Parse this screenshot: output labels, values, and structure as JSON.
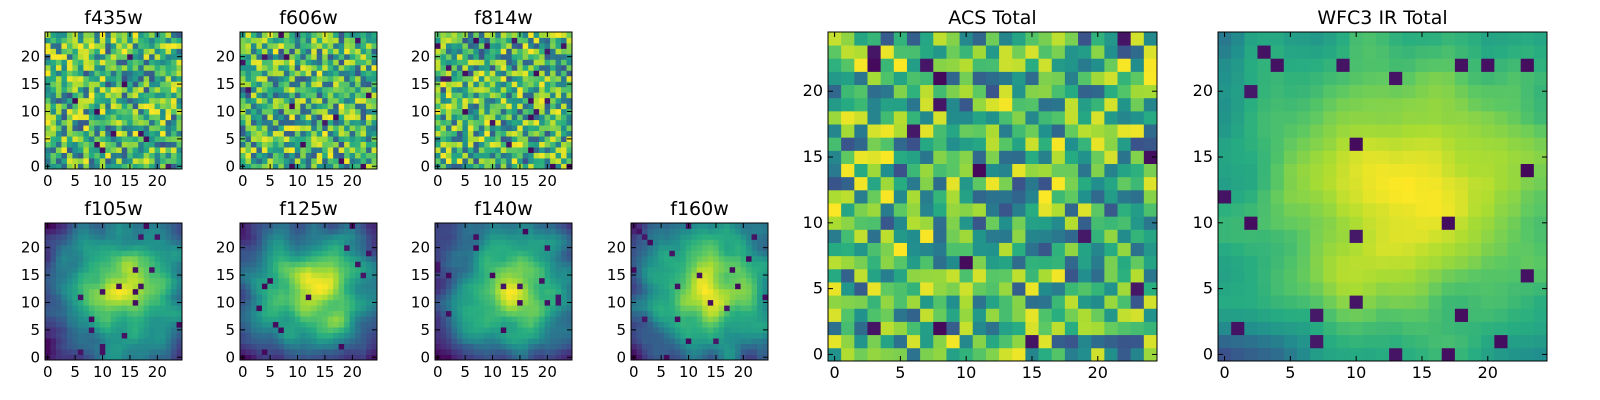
{
  "chart_data": [
    {
      "id": "f435w",
      "type": "heatmap",
      "title": "f435w",
      "grid_size": 25,
      "xlim": [
        -0.5,
        24.5
      ],
      "ylim": [
        -0.5,
        24.5
      ],
      "xticks": [
        0,
        5,
        10,
        15,
        20
      ],
      "yticks": [
        0,
        5,
        10,
        15,
        20
      ],
      "colormap": "viridis",
      "texture": "noise",
      "seed": 11
    },
    {
      "id": "f606w",
      "type": "heatmap",
      "title": "f606w",
      "grid_size": 25,
      "xlim": [
        -0.5,
        24.5
      ],
      "ylim": [
        -0.5,
        24.5
      ],
      "xticks": [
        0,
        5,
        10,
        15,
        20
      ],
      "yticks": [
        0,
        5,
        10,
        15,
        20
      ],
      "colormap": "viridis",
      "texture": "noise",
      "seed": 23
    },
    {
      "id": "f814w",
      "type": "heatmap",
      "title": "f814w",
      "grid_size": 25,
      "xlim": [
        -0.5,
        24.5
      ],
      "ylim": [
        -0.5,
        24.5
      ],
      "xticks": [
        0,
        5,
        10,
        15,
        20
      ],
      "yticks": [
        0,
        5,
        10,
        15,
        20
      ],
      "colormap": "viridis",
      "texture": "noise",
      "seed": 37
    },
    {
      "id": "f105w",
      "type": "heatmap",
      "title": "f105w",
      "grid_size": 25,
      "xlim": [
        -0.5,
        24.5
      ],
      "ylim": [
        -0.5,
        24.5
      ],
      "xticks": [
        0,
        5,
        10,
        15,
        20
      ],
      "yticks": [
        0,
        5,
        10,
        15,
        20
      ],
      "colormap": "viridis",
      "texture": "smooth",
      "seed": 41
    },
    {
      "id": "f125w",
      "type": "heatmap",
      "title": "f125w",
      "grid_size": 25,
      "xlim": [
        -0.5,
        24.5
      ],
      "ylim": [
        -0.5,
        24.5
      ],
      "xticks": [
        0,
        5,
        10,
        15,
        20
      ],
      "yticks": [
        0,
        5,
        10,
        15,
        20
      ],
      "colormap": "viridis",
      "texture": "smooth",
      "seed": 53
    },
    {
      "id": "f140w",
      "type": "heatmap",
      "title": "f140w",
      "grid_size": 25,
      "xlim": [
        -0.5,
        24.5
      ],
      "ylim": [
        -0.5,
        24.5
      ],
      "xticks": [
        0,
        5,
        10,
        15,
        20
      ],
      "yticks": [
        0,
        5,
        10,
        15,
        20
      ],
      "colormap": "viridis",
      "texture": "smooth",
      "seed": 67
    },
    {
      "id": "f160w",
      "type": "heatmap",
      "title": "f160w",
      "grid_size": 25,
      "xlim": [
        -0.5,
        24.5
      ],
      "ylim": [
        -0.5,
        24.5
      ],
      "xticks": [
        0,
        5,
        10,
        15,
        20
      ],
      "yticks": [
        0,
        5,
        10,
        15,
        20
      ],
      "colormap": "viridis",
      "texture": "smooth",
      "seed": 79
    },
    {
      "id": "acs-total",
      "type": "heatmap",
      "title": "ACS Total",
      "grid_size": 25,
      "xlim": [
        -0.5,
        24.5
      ],
      "ylim": [
        -0.5,
        24.5
      ],
      "xticks": [
        0,
        5,
        10,
        15,
        20
      ],
      "yticks": [
        0,
        5,
        10,
        15,
        20
      ],
      "colormap": "viridis",
      "texture": "noise-bright",
      "seed": 83
    },
    {
      "id": "wfc3-ir-total",
      "type": "heatmap",
      "title": "WFC3 IR Total",
      "grid_size": 25,
      "xlim": [
        -0.5,
        24.5
      ],
      "ylim": [
        -0.5,
        24.5
      ],
      "xticks": [
        0,
        5,
        10,
        15,
        20
      ],
      "yticks": [
        0,
        5,
        10,
        15,
        20
      ],
      "colormap": "viridis",
      "texture": "smooth-bright",
      "seed": 97
    }
  ]
}
